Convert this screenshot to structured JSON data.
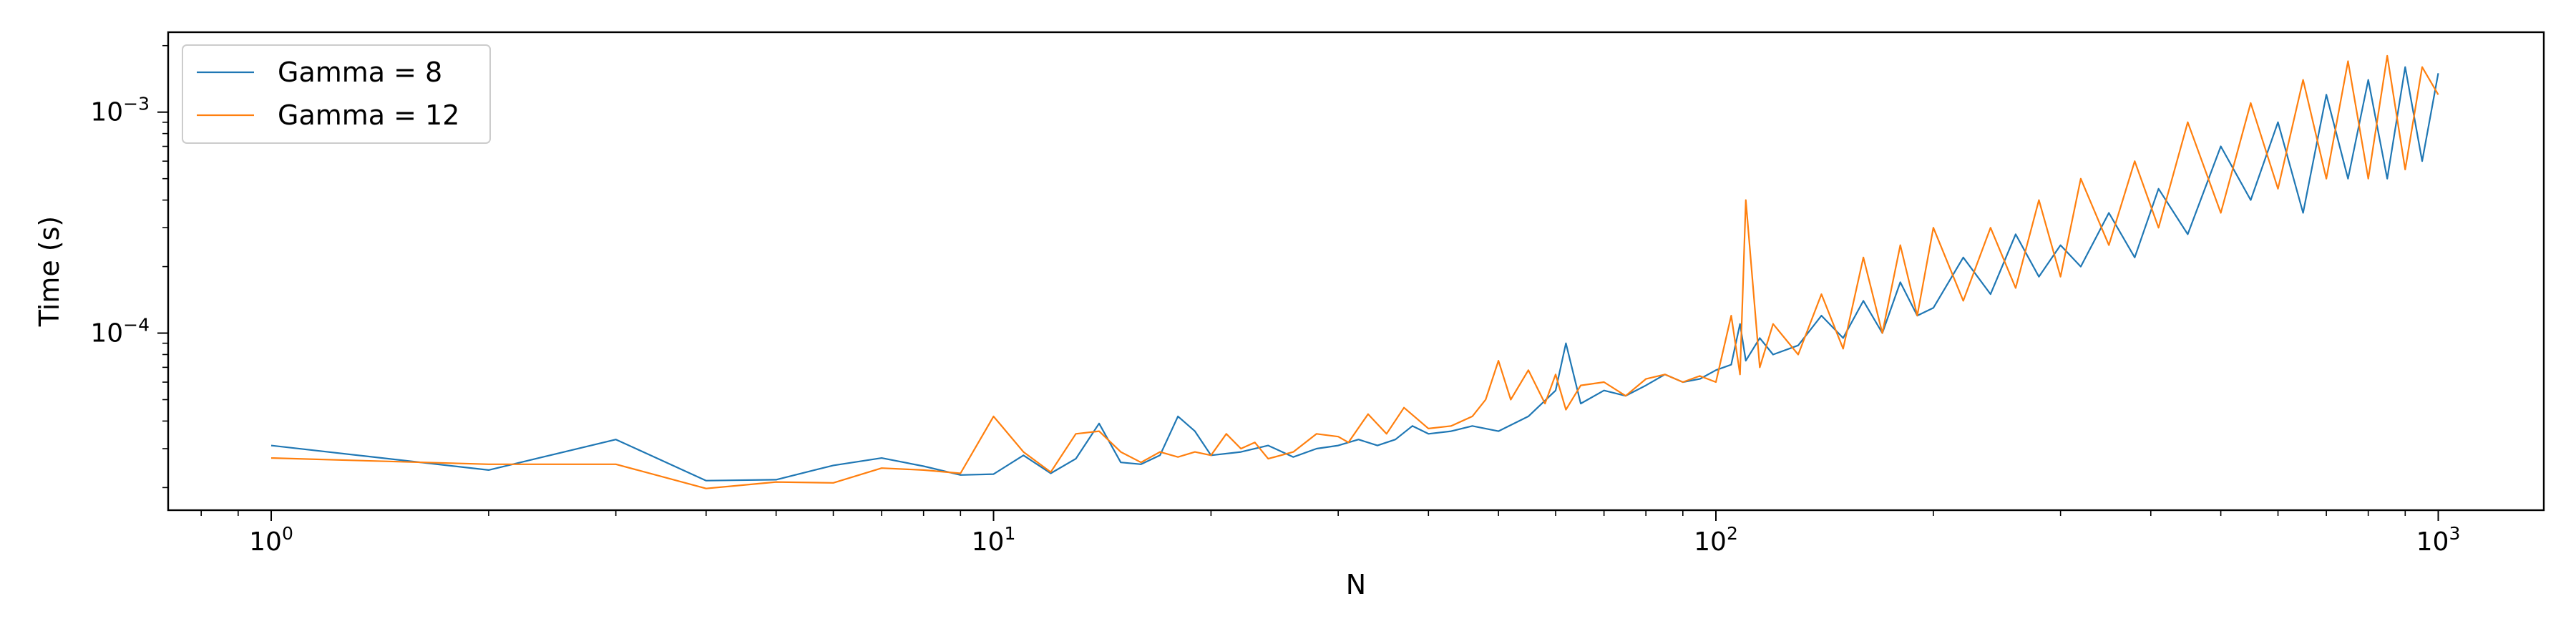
{
  "chart_data": {
    "type": "line",
    "title": "",
    "xlabel": "N",
    "ylabel": "Time (s)",
    "xscale": "log",
    "yscale": "log",
    "xlim": [
      0.72,
      1400
    ],
    "ylim": [
      1.58e-05,
      0.0023
    ],
    "grid": false,
    "legend_position": "top-left",
    "x_ticks": [
      {
        "value": 1,
        "base": "10",
        "exp": "0"
      },
      {
        "value": 10,
        "base": "10",
        "exp": "1"
      },
      {
        "value": 100,
        "base": "10",
        "exp": "2"
      },
      {
        "value": 1000,
        "base": "10",
        "exp": "3"
      }
    ],
    "y_ticks": [
      {
        "value": 0.0001,
        "base": "10",
        "exp": "−4"
      },
      {
        "value": 0.001,
        "base": "10",
        "exp": "−3"
      }
    ],
    "series": [
      {
        "name": "Gamma = 8",
        "color": "#1f77b4",
        "x": [
          1,
          2,
          3,
          4,
          5,
          6,
          7,
          8,
          9,
          10,
          11,
          12,
          13,
          14,
          15,
          16,
          17,
          18,
          19,
          20,
          22,
          24,
          26,
          28,
          30,
          32,
          34,
          36,
          38,
          40,
          43,
          46,
          50,
          55,
          60,
          62,
          65,
          70,
          75,
          80,
          85,
          90,
          95,
          100,
          105,
          108,
          110,
          115,
          120,
          130,
          140,
          150,
          160,
          170,
          180,
          190,
          200,
          220,
          240,
          260,
          280,
          300,
          320,
          350,
          380,
          410,
          450,
          500,
          550,
          600,
          650,
          700,
          750,
          800,
          850,
          900,
          950,
          1000
        ],
        "y": [
          3.1e-05,
          2.4e-05,
          3.3e-05,
          2.15e-05,
          2.17e-05,
          2.52e-05,
          2.72e-05,
          2.5e-05,
          2.28e-05,
          2.3e-05,
          2.8e-05,
          2.32e-05,
          2.7e-05,
          3.9e-05,
          2.6e-05,
          2.55e-05,
          2.8e-05,
          4.2e-05,
          3.6e-05,
          2.8e-05,
          2.9e-05,
          3.1e-05,
          2.75e-05,
          3e-05,
          3.1e-05,
          3.3e-05,
          3.1e-05,
          3.3e-05,
          3.8e-05,
          3.5e-05,
          3.6e-05,
          3.8e-05,
          3.6e-05,
          4.2e-05,
          5.5e-05,
          9e-05,
          4.8e-05,
          5.5e-05,
          5.2e-05,
          5.8e-05,
          6.5e-05,
          6e-05,
          6.2e-05,
          6.8e-05,
          7.2e-05,
          0.00011,
          7.5e-05,
          9.5e-05,
          8e-05,
          8.8e-05,
          0.00012,
          9.5e-05,
          0.00014,
          0.0001,
          0.00017,
          0.00012,
          0.00013,
          0.00022,
          0.00015,
          0.00028,
          0.00018,
          0.00025,
          0.0002,
          0.00035,
          0.00022,
          0.00045,
          0.00028,
          0.0007,
          0.0004,
          0.0009,
          0.00035,
          0.0012,
          0.0005,
          0.0014,
          0.0005,
          0.0016,
          0.0006,
          0.0015
        ]
      },
      {
        "name": "Gamma = 12",
        "color": "#ff7f0e",
        "x": [
          1,
          2,
          3,
          4,
          5,
          6,
          7,
          8,
          9,
          10,
          11,
          12,
          13,
          14,
          15,
          16,
          17,
          18,
          19,
          20,
          21,
          22,
          23,
          24,
          26,
          28,
          30,
          31,
          33,
          35,
          37,
          40,
          43,
          46,
          48,
          50,
          52,
          55,
          58,
          60,
          62,
          65,
          70,
          75,
          80,
          85,
          90,
          95,
          100,
          105,
          108,
          110,
          115,
          120,
          130,
          140,
          150,
          160,
          170,
          180,
          190,
          200,
          220,
          240,
          260,
          280,
          300,
          320,
          350,
          380,
          410,
          450,
          500,
          550,
          600,
          650,
          700,
          750,
          800,
          850,
          900,
          950,
          1000
        ],
        "y": [
          2.72e-05,
          2.55e-05,
          2.55e-05,
          1.98e-05,
          2.12e-05,
          2.1e-05,
          2.45e-05,
          2.4e-05,
          2.32e-05,
          4.2e-05,
          2.9e-05,
          2.35e-05,
          3.5e-05,
          3.6e-05,
          2.9e-05,
          2.6e-05,
          2.9e-05,
          2.75e-05,
          2.9e-05,
          2.8e-05,
          3.5e-05,
          3e-05,
          3.2e-05,
          2.7e-05,
          2.9e-05,
          3.5e-05,
          3.4e-05,
          3.2e-05,
          4.3e-05,
          3.5e-05,
          4.6e-05,
          3.7e-05,
          3.8e-05,
          4.2e-05,
          5e-05,
          7.5e-05,
          5e-05,
          6.8e-05,
          4.8e-05,
          6.5e-05,
          4.5e-05,
          5.8e-05,
          6e-05,
          5.2e-05,
          6.2e-05,
          6.5e-05,
          6e-05,
          6.4e-05,
          6e-05,
          0.00012,
          6.5e-05,
          0.0004,
          7e-05,
          0.00011,
          8e-05,
          0.00015,
          8.5e-05,
          0.00022,
          0.0001,
          0.00025,
          0.00012,
          0.0003,
          0.00014,
          0.0003,
          0.00016,
          0.0004,
          0.00018,
          0.0005,
          0.00025,
          0.0006,
          0.0003,
          0.0009,
          0.00035,
          0.0011,
          0.00045,
          0.0014,
          0.0005,
          0.0017,
          0.0005,
          0.0018,
          0.00055,
          0.0016,
          0.0012
        ]
      }
    ]
  }
}
